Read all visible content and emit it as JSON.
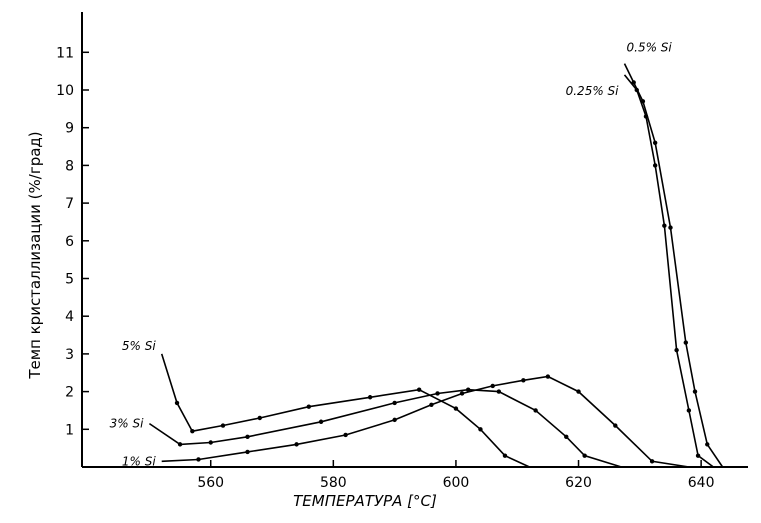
{
  "chart_data": {
    "type": "line",
    "xlabel": "ТЕМПЕРАТУРА [°C]",
    "ylabel": "Темп кристаллизации (%/град)",
    "xlim": [
      539,
      648
    ],
    "ylim": [
      0,
      12
    ],
    "xticks": [
      560,
      580,
      600,
      620,
      640
    ],
    "yticks": [
      1,
      2,
      3,
      4,
      5,
      6,
      7,
      8,
      9,
      10,
      11
    ],
    "grid": false,
    "series": [
      {
        "name": "0.5% Si",
        "points": [
          [
            627.5,
            10.7
          ],
          [
            629,
            10.2
          ],
          [
            630.5,
            9.7
          ],
          [
            632.5,
            8.6
          ],
          [
            635,
            6.35
          ],
          [
            637.5,
            3.3
          ],
          [
            639,
            2.0
          ],
          [
            641,
            0.6
          ],
          [
            643.5,
            0.0
          ]
        ]
      },
      {
        "name": "0.25% Si",
        "points": [
          [
            627.5,
            10.4
          ],
          [
            629.5,
            10.0
          ],
          [
            631,
            9.3
          ],
          [
            632.5,
            8.0
          ],
          [
            634,
            6.4
          ],
          [
            636,
            3.1
          ],
          [
            638,
            1.5
          ],
          [
            639.5,
            0.3
          ],
          [
            642,
            0.0
          ]
        ]
      },
      {
        "name": "5% Si",
        "points": [
          [
            552,
            3.0
          ],
          [
            554.5,
            1.7
          ],
          [
            557,
            0.95
          ],
          [
            562,
            1.1
          ],
          [
            568,
            1.3
          ],
          [
            576,
            1.6
          ],
          [
            586,
            1.85
          ],
          [
            594,
            2.05
          ],
          [
            600,
            1.55
          ],
          [
            604,
            1.0
          ],
          [
            608,
            0.3
          ],
          [
            612,
            0.0
          ]
        ]
      },
      {
        "name": "3% Si",
        "points": [
          [
            550,
            1.15
          ],
          [
            555,
            0.6
          ],
          [
            560,
            0.65
          ],
          [
            566,
            0.8
          ],
          [
            578,
            1.2
          ],
          [
            590,
            1.7
          ],
          [
            597,
            1.95
          ],
          [
            602,
            2.05
          ],
          [
            607,
            2.0
          ],
          [
            613,
            1.5
          ],
          [
            618,
            0.8
          ],
          [
            621,
            0.3
          ],
          [
            627,
            0.0
          ]
        ]
      },
      {
        "name": "1% Si",
        "points": [
          [
            552,
            0.15
          ],
          [
            558,
            0.2
          ],
          [
            566,
            0.4
          ],
          [
            574,
            0.6
          ],
          [
            582,
            0.85
          ],
          [
            590,
            1.25
          ],
          [
            596,
            1.65
          ],
          [
            601,
            1.95
          ],
          [
            606,
            2.15
          ],
          [
            611,
            2.3
          ],
          [
            615,
            2.4
          ],
          [
            620,
            2.0
          ],
          [
            626,
            1.1
          ],
          [
            632,
            0.15
          ],
          [
            638,
            0.0
          ]
        ]
      }
    ]
  }
}
